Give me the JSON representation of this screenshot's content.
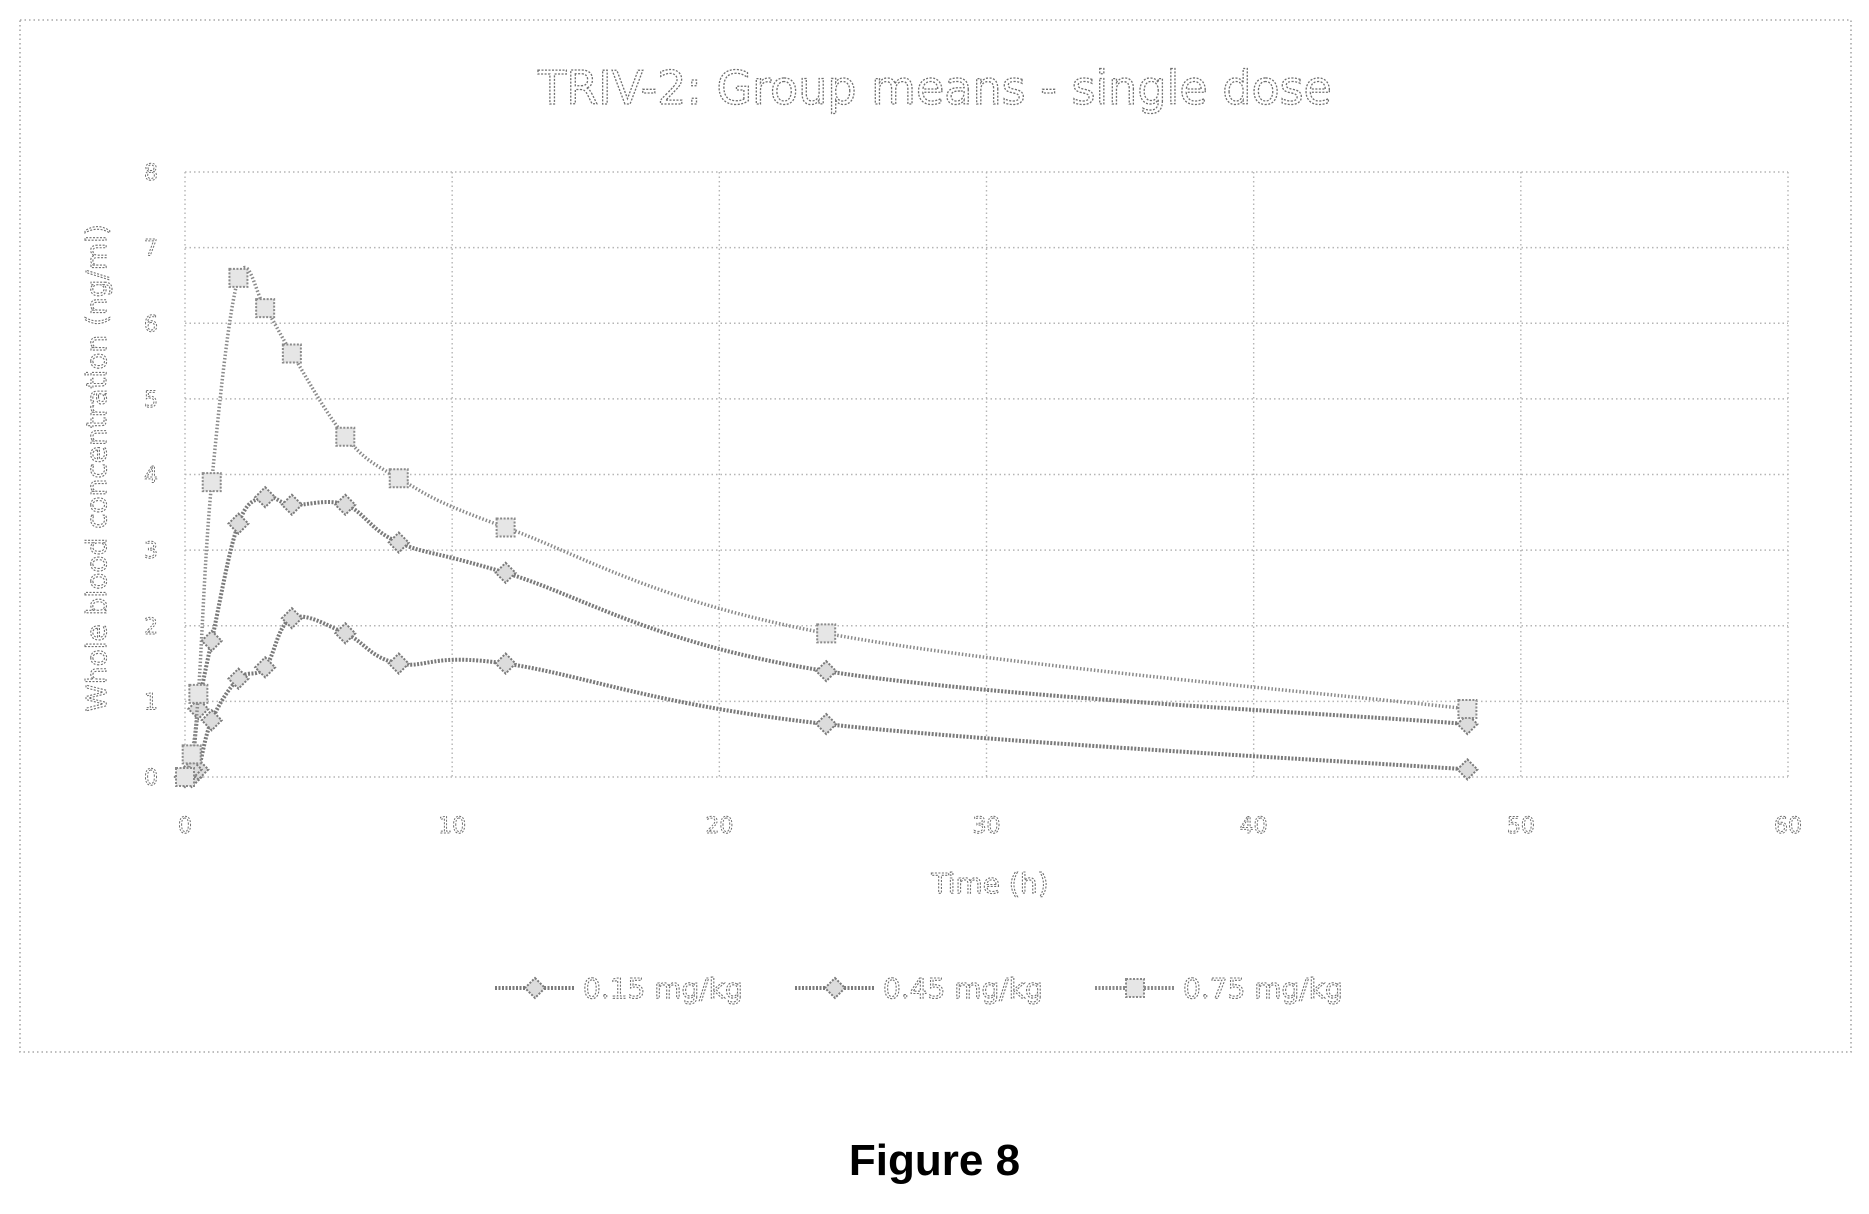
{
  "figure_caption": "Figure 8",
  "chart_data": {
    "type": "line",
    "title": "TRIV-2: Group means - single dose",
    "xlabel": "Time (h)",
    "ylabel": "Whole blood concentration (ng/ml)",
    "xlim": [
      0,
      60
    ],
    "ylim": [
      0,
      8
    ],
    "xticks": [
      0,
      10,
      20,
      30,
      40,
      50,
      60
    ],
    "yticks": [
      0,
      1,
      2,
      3,
      4,
      5,
      6,
      7,
      8
    ],
    "grid": true,
    "legend_position": "bottom",
    "series": [
      {
        "name": "0.15 mg/kg",
        "color": "#7a7a7a",
        "marker": "diamond",
        "x": [
          0,
          0.25,
          0.5,
          1,
          2,
          3,
          4,
          6,
          8,
          12,
          24,
          48
        ],
        "y": [
          0,
          0,
          0.1,
          0.75,
          1.3,
          1.45,
          2.1,
          1.9,
          1.5,
          1.5,
          0.7,
          0.1
        ]
      },
      {
        "name": "0.45 mg/kg",
        "color": "#7a7a7a",
        "marker": "diamond",
        "x": [
          0,
          0.25,
          0.5,
          1,
          2,
          3,
          4,
          6,
          8,
          12,
          24,
          48
        ],
        "y": [
          0,
          0.1,
          0.9,
          1.8,
          3.35,
          3.7,
          3.6,
          3.6,
          3.1,
          2.7,
          1.4,
          0.7
        ]
      },
      {
        "name": "0.75 mg/kg",
        "color": "#8a8a8a",
        "marker": "square",
        "x": [
          0,
          0.25,
          0.5,
          1,
          2,
          3,
          4,
          6,
          8,
          12,
          24,
          48
        ],
        "y": [
          0,
          0.3,
          1.1,
          3.9,
          6.6,
          6.2,
          5.6,
          4.5,
          3.95,
          3.3,
          1.9,
          0.9
        ]
      }
    ]
  }
}
